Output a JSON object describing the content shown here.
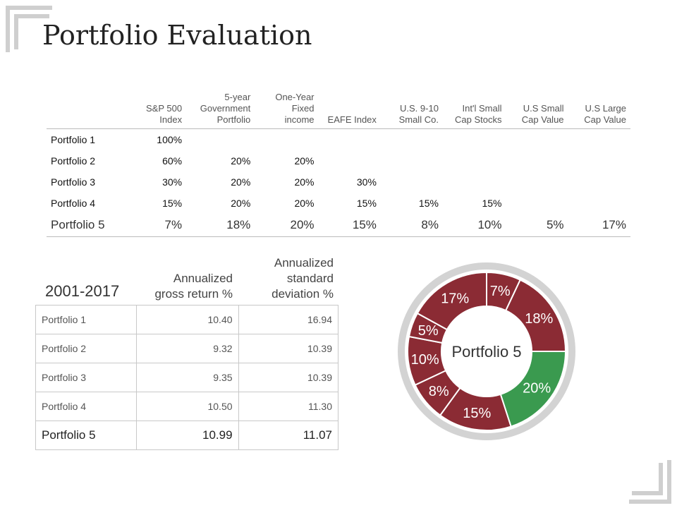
{
  "title": "Portfolio Evaluation",
  "allocation": {
    "headers": [
      "S&P 500|Index",
      "5-year|Government|Portfolio",
      "One-Year|Fixed|income",
      "EAFE Index",
      "U.S. 9-10|Small Co.",
      "Int'l Small|Cap Stocks",
      "U.S Small|Cap Value",
      "U.S Large|Cap Value"
    ],
    "rows": [
      {
        "name": "Portfolio 1",
        "values": [
          "100%",
          "",
          "",
          "",
          "",
          "",
          "",
          ""
        ]
      },
      {
        "name": "Portfolio 2",
        "values": [
          "60%",
          "20%",
          "20%",
          "",
          "",
          "",
          "",
          ""
        ]
      },
      {
        "name": "Portfolio 3",
        "values": [
          "30%",
          "20%",
          "20%",
          "30%",
          "",
          "",
          "",
          ""
        ]
      },
      {
        "name": "Portfolio 4",
        "values": [
          "15%",
          "20%",
          "20%",
          "15%",
          "15%",
          "15%",
          "",
          ""
        ]
      },
      {
        "name": "Portfolio 5",
        "values": [
          "7%",
          "18%",
          "20%",
          "15%",
          "8%",
          "10%",
          "5%",
          "17%"
        ]
      }
    ]
  },
  "returns": {
    "period": "2001-2017",
    "col1": "Annualized|gross return %",
    "col2": "Annualized|standard|deviation %",
    "rows": [
      {
        "name": "Portfolio 1",
        "ret": "10.40",
        "sd": "16.94"
      },
      {
        "name": "Portfolio 2",
        "ret": "9.32",
        "sd": "10.39"
      },
      {
        "name": "Portfolio 3",
        "ret": "9.35",
        "sd": "10.39"
      },
      {
        "name": "Portfolio 4",
        "ret": "10.50",
        "sd": "11.30"
      },
      {
        "name": "Portfolio 5",
        "ret": "10.99",
        "sd": "11.07"
      }
    ]
  },
  "chart_data": {
    "type": "pie",
    "title": "Portfolio 5",
    "slices": [
      {
        "label": "7%",
        "value": 7,
        "color": "#8b2b34"
      },
      {
        "label": "18%",
        "value": 18,
        "color": "#8b2b34"
      },
      {
        "label": "20%",
        "value": 20,
        "color": "#3a9a4f"
      },
      {
        "label": "15%",
        "value": 15,
        "color": "#8b2b34"
      },
      {
        "label": "8%",
        "value": 8,
        "color": "#8b2b34"
      },
      {
        "label": "10%",
        "value": 10,
        "color": "#8b2b34"
      },
      {
        "label": "5%",
        "value": 5,
        "color": "#8b2b34"
      },
      {
        "label": "17%",
        "value": 17,
        "color": "#8b2b34"
      }
    ],
    "ring_color": "#d3d3d3",
    "legend": "none"
  }
}
